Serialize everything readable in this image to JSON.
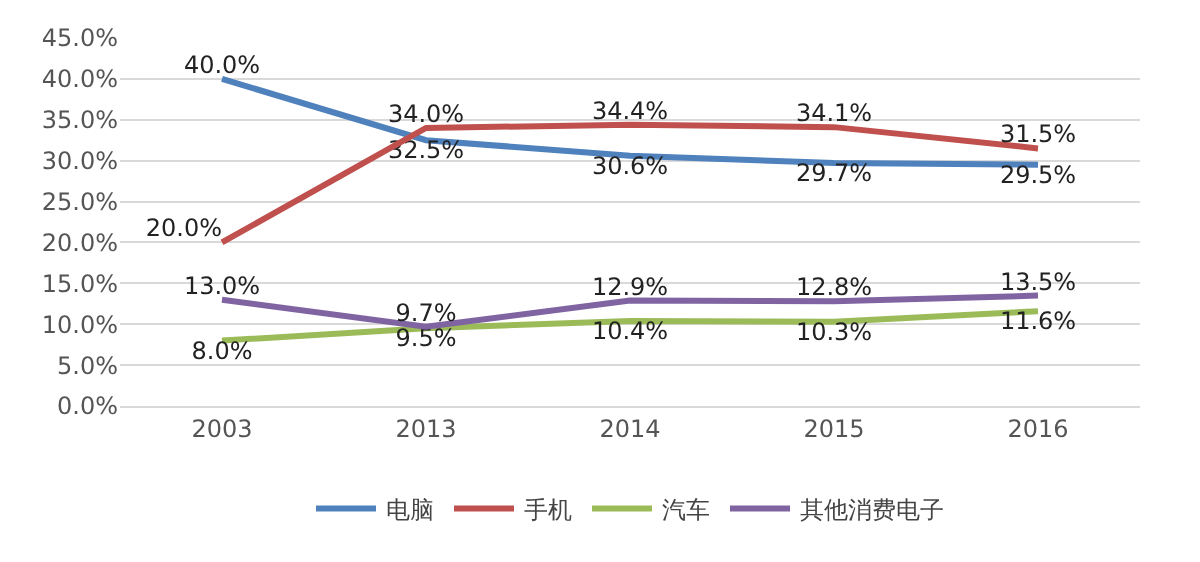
{
  "chart_data": {
    "type": "line",
    "categories": [
      "2003",
      "2013",
      "2014",
      "2015",
      "2016"
    ],
    "series": [
      {
        "name": "电脑",
        "color": "#4f81bd",
        "values": [
          40.0,
          32.5,
          30.6,
          29.7,
          29.5
        ],
        "value_labels": [
          "40.0%",
          "32.5%",
          "30.6%",
          "29.7%",
          "29.5%"
        ]
      },
      {
        "name": "手机",
        "color": "#c0504d",
        "values": [
          20.0,
          34.0,
          34.4,
          34.1,
          31.5
        ],
        "value_labels": [
          "20.0%",
          "34.0%",
          "34.4%",
          "34.1%",
          "31.5%"
        ]
      },
      {
        "name": "汽车",
        "color": "#9bbb59",
        "values": [
          8.0,
          9.5,
          10.4,
          10.3,
          11.6
        ],
        "value_labels": [
          "8.0%",
          "9.5%",
          "10.4%",
          "10.3%",
          "11.6%"
        ]
      },
      {
        "name": "其他消费电子",
        "color": "#8064a2",
        "values": [
          13.0,
          9.7,
          12.9,
          12.8,
          13.5
        ],
        "value_labels": [
          "13.0%",
          "9.7%",
          "12.9%",
          "12.8%",
          "13.5%"
        ]
      }
    ],
    "ylim": [
      0,
      45
    ],
    "yticks": [
      {
        "value": 0,
        "label": "0.0%"
      },
      {
        "value": 5,
        "label": "5.0%"
      },
      {
        "value": 10,
        "label": "10.0%"
      },
      {
        "value": 15,
        "label": "15.0%"
      },
      {
        "value": 20,
        "label": "20.0%"
      },
      {
        "value": 25,
        "label": "25.0%"
      },
      {
        "value": 30,
        "label": "30.0%"
      },
      {
        "value": 35,
        "label": "35.0%"
      },
      {
        "value": 40,
        "label": "40.0%"
      },
      {
        "value": 45,
        "label": "45.0%"
      }
    ],
    "grid": "y",
    "legend": "bottom",
    "marker": "none",
    "line_style": "solid"
  }
}
